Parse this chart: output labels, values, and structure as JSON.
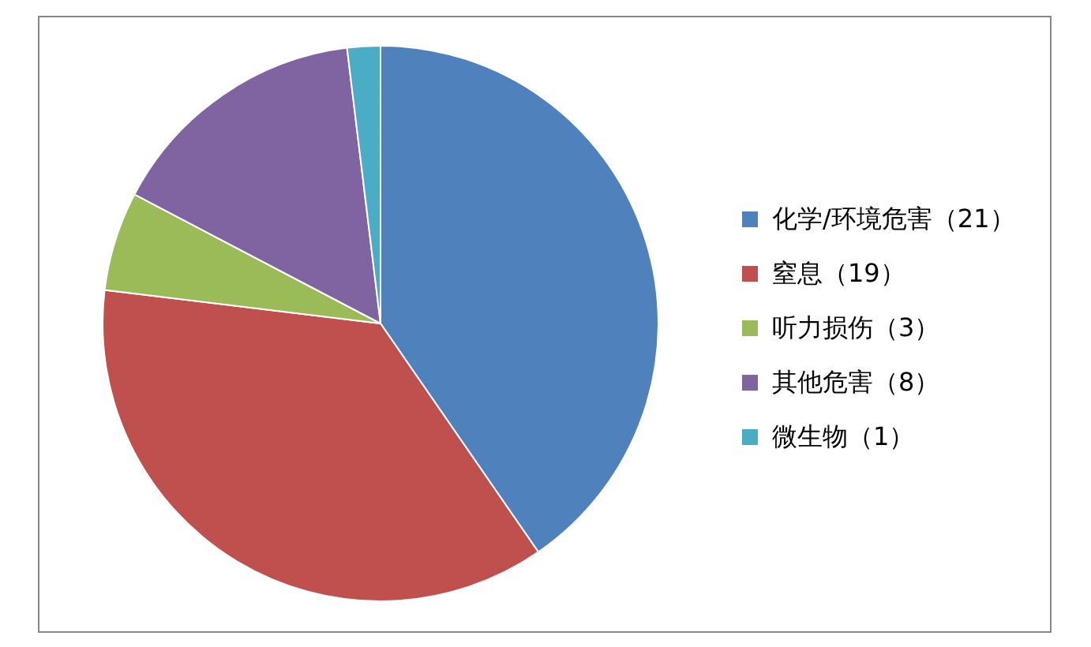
{
  "chart_data": {
    "type": "pie",
    "categories": [
      "化学/环境危害（21）",
      "窒息（19）",
      "听力损伤（3）",
      "其他危害（8）",
      "微生物（1）"
    ],
    "values": [
      21,
      19,
      3,
      8,
      1
    ],
    "colors": [
      "#4f81bd",
      "#c0504d",
      "#9bbb59",
      "#8064a2",
      "#4bacc6"
    ],
    "legend": "right"
  }
}
